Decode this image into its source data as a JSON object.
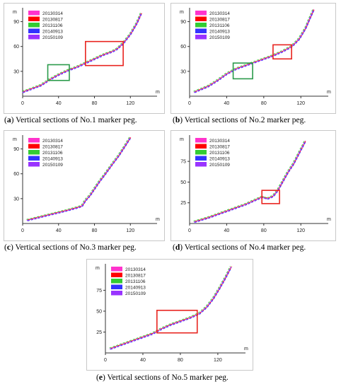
{
  "colors": {
    "20130314": "#ff33cc",
    "20130817": "#ff0000",
    "20131106": "#33cc33",
    "20140913": "#3333ff",
    "20150109": "#9933ff",
    "highlight_red": "#e8241f",
    "highlight_green": "#2a9a4a"
  },
  "chart_data": [
    {
      "type": "line",
      "caption_label": "a",
      "caption_text": "Vertical sections of No.1 marker peg.",
      "xlabel": "m",
      "ylabel": "m",
      "xlim": [
        0,
        145
      ],
      "ylim": [
        0,
        105
      ],
      "xticks": [
        0,
        40,
        80,
        120
      ],
      "yticks": [
        30,
        60,
        90
      ],
      "legend": [
        "20130314",
        "20130817",
        "20131106",
        "20140913",
        "20150109"
      ],
      "legend_position": "top-left",
      "profile": [
        [
          0,
          5
        ],
        [
          20,
          13
        ],
        [
          30,
          20
        ],
        [
          40,
          26
        ],
        [
          50,
          31
        ],
        [
          60,
          35
        ],
        [
          70,
          40
        ],
        [
          80,
          45
        ],
        [
          90,
          50
        ],
        [
          100,
          54
        ],
        [
          105,
          57
        ],
        [
          112,
          64
        ],
        [
          120,
          75
        ],
        [
          127,
          88
        ],
        [
          132,
          100
        ]
      ],
      "highlights": [
        {
          "color": "red",
          "x": [
            70,
            112
          ],
          "y": [
            37,
            66
          ]
        },
        {
          "color": "green",
          "x": [
            28,
            52
          ],
          "y": [
            19,
            38
          ]
        }
      ]
    },
    {
      "type": "line",
      "caption_label": "b",
      "caption_text": "Vertical sections of No.2 marker peg.",
      "xlabel": "m",
      "ylabel": "m",
      "xlim": [
        0,
        145
      ],
      "ylim": [
        0,
        105
      ],
      "xticks": [
        0,
        40,
        80,
        120
      ],
      "yticks": [
        30,
        60,
        90
      ],
      "legend": [
        "20130314",
        "20130817",
        "20131106",
        "20140913",
        "20150109"
      ],
      "legend_position": "top-left",
      "profile": [
        [
          5,
          5
        ],
        [
          20,
          12
        ],
        [
          30,
          19
        ],
        [
          40,
          27
        ],
        [
          50,
          33
        ],
        [
          60,
          37
        ],
        [
          70,
          41
        ],
        [
          80,
          45
        ],
        [
          90,
          49
        ],
        [
          100,
          54
        ],
        [
          110,
          60
        ],
        [
          118,
          69
        ],
        [
          125,
          82
        ],
        [
          130,
          95
        ],
        [
          134,
          105
        ]
      ],
      "highlights": [
        {
          "color": "red",
          "x": [
            90,
            110
          ],
          "y": [
            45,
            62
          ]
        },
        {
          "color": "green",
          "x": [
            47,
            68
          ],
          "y": [
            21,
            40
          ]
        }
      ]
    },
    {
      "type": "line",
      "caption_label": "c",
      "caption_text": "Vertical sections of No.3 marker peg.",
      "xlabel": "m",
      "ylabel": "m",
      "xlim": [
        0,
        145
      ],
      "ylim": [
        0,
        105
      ],
      "xticks": [
        0,
        40,
        80,
        120
      ],
      "yticks": [
        30,
        60,
        90
      ],
      "legend": [
        "20130314",
        "20130817",
        "20131106",
        "20140913",
        "20150109"
      ],
      "legend_position": "top-left",
      "profile": [
        [
          5,
          4
        ],
        [
          20,
          8
        ],
        [
          35,
          12
        ],
        [
          50,
          16
        ],
        [
          60,
          19
        ],
        [
          66,
          21
        ],
        [
          70,
          28
        ],
        [
          75,
          34
        ],
        [
          80,
          42
        ],
        [
          85,
          50
        ],
        [
          92,
          60
        ],
        [
          100,
          72
        ],
        [
          107,
          82
        ],
        [
          113,
          92
        ],
        [
          120,
          104
        ]
      ],
      "highlights": []
    },
    {
      "type": "line",
      "caption_label": "d",
      "caption_text": "Vertical sections of No.4 marker peg.",
      "xlabel": "m",
      "ylabel": "m",
      "xlim": [
        0,
        145
      ],
      "ylim": [
        0,
        105
      ],
      "xticks": [
        0,
        40,
        80,
        120
      ],
      "yticks": [
        25,
        50,
        75
      ],
      "legend": [
        "20130314",
        "20130817",
        "20131106",
        "20140913",
        "20150109"
      ],
      "legend_position": "top-left",
      "profile": [
        [
          5,
          2
        ],
        [
          20,
          7
        ],
        [
          35,
          13
        ],
        [
          50,
          19
        ],
        [
          60,
          23
        ],
        [
          70,
          28
        ],
        [
          78,
          32
        ],
        [
          84,
          30
        ],
        [
          90,
          33
        ],
        [
          95,
          40
        ],
        [
          100,
          50
        ],
        [
          106,
          62
        ],
        [
          112,
          72
        ],
        [
          118,
          85
        ],
        [
          125,
          100
        ]
      ],
      "highlights": [
        {
          "color": "red",
          "x": [
            78,
            97
          ],
          "y": [
            24,
            40
          ]
        }
      ]
    },
    {
      "type": "line",
      "caption_label": "e",
      "caption_text": "Vertical sections of No.5 marker peg.",
      "xlabel": "m",
      "ylabel": "m",
      "xlim": [
        0,
        145
      ],
      "ylim": [
        0,
        105
      ],
      "xticks": [
        0,
        40,
        80,
        120
      ],
      "yticks": [
        25,
        50,
        75
      ],
      "legend": [
        "20130314",
        "20130817",
        "20131106",
        "20140913",
        "20150109"
      ],
      "legend_position": "top-left",
      "profile": [
        [
          5,
          5
        ],
        [
          20,
          11
        ],
        [
          35,
          17
        ],
        [
          50,
          23
        ],
        [
          60,
          29
        ],
        [
          70,
          34
        ],
        [
          80,
          38
        ],
        [
          90,
          42
        ],
        [
          100,
          47
        ],
        [
          108,
          55
        ],
        [
          115,
          65
        ],
        [
          122,
          78
        ],
        [
          128,
          90
        ],
        [
          134,
          103
        ]
      ],
      "highlights": [
        {
          "color": "red",
          "x": [
            55,
            98
          ],
          "y": [
            24,
            51
          ]
        }
      ]
    }
  ]
}
